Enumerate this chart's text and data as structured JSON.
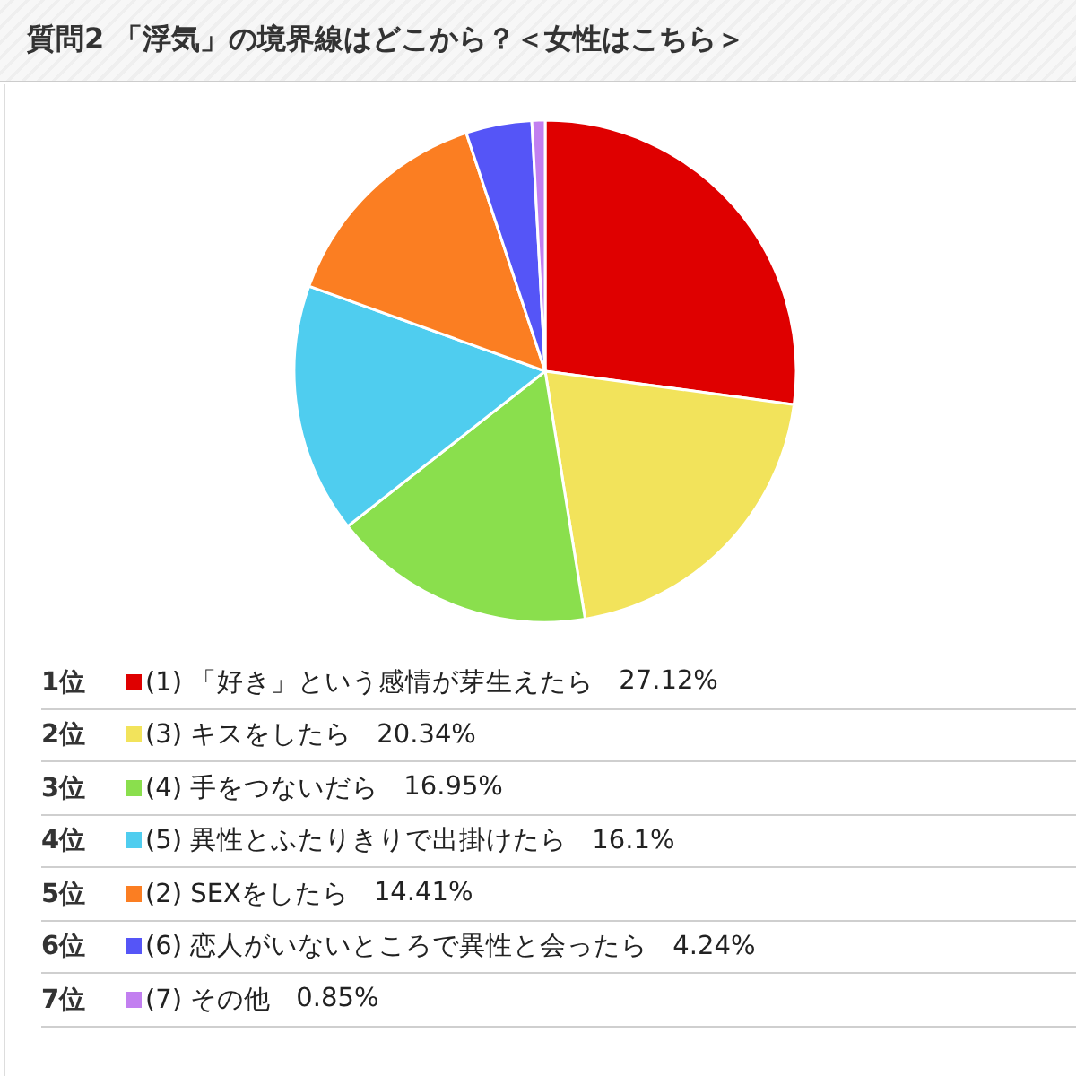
{
  "chart_data": {
    "type": "pie",
    "title": "質問2 「浮気」の境界線はどこから？＜女性はこちら＞",
    "categories": [
      "(1) 「好き」という感情が芽生えたら",
      "(3) キスをしたら",
      "(4) 手をつないだら",
      "(5) 異性とふたりきりで出掛けたら",
      "(2) SEXをしたら",
      "(6) 恋人がいないところで異性と会ったら",
      "(7) その他"
    ],
    "values": [
      27.12,
      20.34,
      16.95,
      16.1,
      14.41,
      4.24,
      0.85
    ],
    "value_labels": [
      "27.12%",
      "20.34%",
      "16.95%",
      "16.1%",
      "14.41%",
      "4.24%",
      "0.85%"
    ],
    "colors": [
      "#df0000",
      "#f2e35b",
      "#8adf4d",
      "#4fcdef",
      "#fb7e22",
      "#5555f7",
      "#c27ff0"
    ],
    "annotations": [
      "1位",
      "2位",
      "3位",
      "4位",
      "5位",
      "6位",
      "7位"
    ],
    "legend": "bottom"
  }
}
